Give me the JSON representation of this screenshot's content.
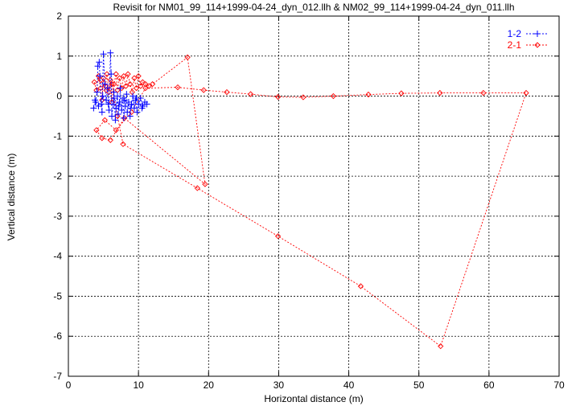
{
  "chart_data": {
    "type": "line",
    "title": "Revisit for NM01_99_114+1999-04-24_dyn_012.llh & NM02_99_114+1999-04-24_dyn_011.llh",
    "xlabel": "Horizontal distance (m)",
    "ylabel": "Vertical distance (m)",
    "xlim": [
      0,
      70
    ],
    "ylim": [
      -7,
      2
    ],
    "xticks": [
      0,
      10,
      20,
      30,
      40,
      50,
      60,
      70
    ],
    "yticks": [
      -7,
      -6,
      -5,
      -4,
      -3,
      -2,
      -1,
      0,
      1,
      2
    ],
    "grid": "on",
    "legend_position": "top-right",
    "series": [
      {
        "name": "1-2",
        "color": "#0000ff",
        "marker": "plus",
        "line": "dashed",
        "points": [
          [
            3.6,
            -0.3
          ],
          [
            3.9,
            -0.15
          ],
          [
            4.1,
            0.1
          ],
          [
            4.2,
            0.75
          ],
          [
            4.4,
            0.85
          ],
          [
            4.5,
            0.5
          ],
          [
            4.7,
            -0.2
          ],
          [
            4.8,
            -0.4
          ],
          [
            5.0,
            1.05
          ],
          [
            5.2,
            0.3
          ],
          [
            5.4,
            -0.1
          ],
          [
            5.6,
            0.2
          ],
          [
            5.8,
            -0.35
          ],
          [
            6.0,
            1.08
          ],
          [
            6.1,
            0.55
          ],
          [
            6.2,
            -0.5
          ],
          [
            6.4,
            -0.2
          ],
          [
            6.5,
            0.1
          ],
          [
            6.7,
            -0.6
          ],
          [
            6.8,
            -0.3
          ],
          [
            7.0,
            0.0
          ],
          [
            7.1,
            -0.45
          ],
          [
            7.3,
            -0.15
          ],
          [
            7.4,
            0.2
          ],
          [
            7.6,
            -0.35
          ],
          [
            7.8,
            -0.05
          ],
          [
            7.9,
            -0.55
          ],
          [
            8.1,
            -0.25
          ],
          [
            8.3,
            0.05
          ],
          [
            8.4,
            -0.4
          ],
          [
            8.6,
            -0.15
          ],
          [
            8.8,
            -0.5
          ],
          [
            9.0,
            -0.2
          ],
          [
            9.2,
            0.0
          ],
          [
            9.4,
            -0.3
          ],
          [
            9.6,
            -0.1
          ],
          [
            9.8,
            -0.4
          ],
          [
            10.0,
            -0.2
          ],
          [
            10.3,
            -0.05
          ],
          [
            10.6,
            -0.25
          ],
          [
            10.9,
            -0.15
          ],
          [
            11.2,
            -0.2
          ],
          [
            10.5,
            -0.3
          ],
          [
            9.7,
            -0.05
          ],
          [
            8.9,
            -0.3
          ],
          [
            8.0,
            -0.1
          ],
          [
            7.2,
            -0.25
          ],
          [
            6.5,
            -0.05
          ],
          [
            5.7,
            -0.2
          ],
          [
            4.9,
            0.0
          ],
          [
            4.3,
            -0.25
          ],
          [
            3.8,
            -0.1
          ]
        ]
      },
      {
        "name": "2-1",
        "color": "#ff0000",
        "marker": "diamond",
        "line": "dashed",
        "points": [
          [
            3.7,
            0.35
          ],
          [
            4.0,
            0.15
          ],
          [
            4.3,
            0.5
          ],
          [
            4.6,
            0.2
          ],
          [
            4.8,
            -0.1
          ],
          [
            5.0,
            0.45
          ],
          [
            5.3,
            0.25
          ],
          [
            5.5,
            0.55
          ],
          [
            5.8,
            0.1
          ],
          [
            6.0,
            0.4
          ],
          [
            6.2,
            -0.15
          ],
          [
            6.5,
            0.3
          ],
          [
            6.8,
            0.55
          ],
          [
            7.0,
            0.15
          ],
          [
            7.3,
            0.45
          ],
          [
            7.6,
            0.2
          ],
          [
            7.9,
            0.5
          ],
          [
            8.2,
            0.25
          ],
          [
            8.5,
            0.55
          ],
          [
            8.8,
            0.3
          ],
          [
            9.1,
            0.1
          ],
          [
            9.4,
            0.45
          ],
          [
            9.7,
            0.2
          ],
          [
            10.0,
            0.5
          ],
          [
            10.3,
            0.25
          ],
          [
            10.6,
            0.35
          ],
          [
            11.0,
            0.3
          ],
          [
            11.5,
            0.25
          ],
          [
            12.0,
            0.3
          ],
          [
            17.0,
            0.97
          ],
          [
            19.5,
            -2.2
          ],
          [
            8.0,
            -0.55
          ],
          [
            6.0,
            -1.1
          ],
          [
            4.8,
            -1.05
          ],
          [
            4.0,
            -0.85
          ],
          [
            5.2,
            -0.6
          ],
          [
            6.8,
            -0.85
          ],
          [
            9.0,
            -0.4
          ],
          [
            11.0,
            0.2
          ],
          [
            15.6,
            0.22
          ],
          [
            19.3,
            0.15
          ],
          [
            22.6,
            0.1
          ],
          [
            26.0,
            0.05
          ],
          [
            29.9,
            -0.02
          ],
          [
            33.5,
            -0.03
          ],
          [
            37.8,
            0.0
          ],
          [
            42.8,
            0.04
          ],
          [
            47.5,
            0.07
          ],
          [
            53.0,
            0.08
          ],
          [
            59.2,
            0.08
          ],
          [
            65.3,
            0.08
          ],
          [
            53.1,
            -6.25
          ],
          [
            41.7,
            -4.75
          ],
          [
            29.9,
            -3.5
          ],
          [
            18.4,
            -2.3
          ],
          [
            7.8,
            -1.2
          ],
          [
            7.0,
            -0.5
          ],
          [
            6.2,
            0.3
          ],
          [
            5.4,
            0.15
          ],
          [
            4.6,
            0.4
          ]
        ]
      }
    ]
  }
}
